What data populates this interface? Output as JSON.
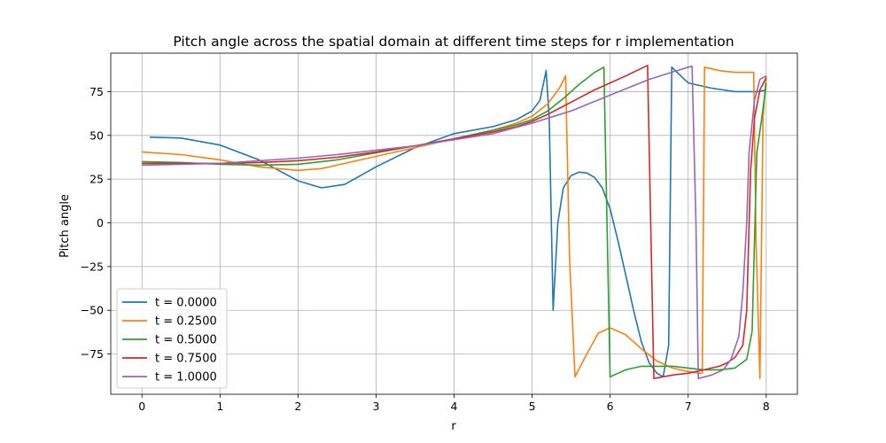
{
  "chart_data": {
    "type": "line",
    "title": "Pitch angle across the spatial domain at different time steps for r implementation",
    "xlabel": "r",
    "ylabel": "Pitch angle",
    "xlim": [
      -0.4,
      8.4
    ],
    "ylim": [
      -98,
      97
    ],
    "xticks": [
      0,
      1,
      2,
      3,
      4,
      5,
      6,
      7,
      8
    ],
    "xtick_labels": [
      "0",
      "1",
      "2",
      "3",
      "4",
      "5",
      "6",
      "7",
      "8"
    ],
    "yticks": [
      -75,
      -50,
      -25,
      0,
      25,
      50,
      75
    ],
    "ytick_labels": [
      "−75",
      "−50",
      "−25",
      "0",
      "25",
      "50",
      "75"
    ],
    "grid": true,
    "legend_position": "lower-left",
    "colors": [
      "#1f77b4",
      "#ff7f0e",
      "#2ca02c",
      "#d62728",
      "#9467bd"
    ],
    "series": [
      {
        "name": "t = 0.0000",
        "points": [
          [
            0.1,
            49
          ],
          [
            0.5,
            48.5
          ],
          [
            1.0,
            44.5
          ],
          [
            1.5,
            36
          ],
          [
            2.0,
            24
          ],
          [
            2.3,
            20
          ],
          [
            2.6,
            22
          ],
          [
            3.0,
            32
          ],
          [
            3.5,
            43
          ],
          [
            4.0,
            51
          ],
          [
            4.5,
            55
          ],
          [
            4.8,
            59
          ],
          [
            5.0,
            64
          ],
          [
            5.1,
            70
          ],
          [
            5.18,
            87
          ],
          [
            5.22,
            60
          ],
          [
            5.27,
            -50
          ],
          [
            5.33,
            0
          ],
          [
            5.4,
            20
          ],
          [
            5.5,
            27
          ],
          [
            5.6,
            29
          ],
          [
            5.7,
            28.5
          ],
          [
            5.8,
            26
          ],
          [
            5.9,
            20
          ],
          [
            6.0,
            8
          ],
          [
            6.1,
            -10
          ],
          [
            6.2,
            -30
          ],
          [
            6.3,
            -50
          ],
          [
            6.4,
            -68
          ],
          [
            6.5,
            -80
          ],
          [
            6.6,
            -86
          ],
          [
            6.68,
            -88
          ],
          [
            6.75,
            -70
          ],
          [
            6.79,
            89
          ],
          [
            7.0,
            80
          ],
          [
            7.3,
            77
          ],
          [
            7.6,
            75
          ],
          [
            7.9,
            75
          ],
          [
            8.0,
            76
          ]
        ]
      },
      {
        "name": "t = 0.2500",
        "points": [
          [
            0,
            40.5
          ],
          [
            0.5,
            39
          ],
          [
            1.0,
            36
          ],
          [
            1.5,
            32
          ],
          [
            2.0,
            30
          ],
          [
            2.3,
            31
          ],
          [
            2.6,
            34
          ],
          [
            3.0,
            38
          ],
          [
            3.5,
            43
          ],
          [
            4.0,
            48
          ],
          [
            4.5,
            53
          ],
          [
            4.8,
            57
          ],
          [
            5.0,
            61
          ],
          [
            5.2,
            68
          ],
          [
            5.35,
            77
          ],
          [
            5.43,
            84
          ],
          [
            5.48,
            -20
          ],
          [
            5.55,
            -88
          ],
          [
            5.7,
            -75
          ],
          [
            5.85,
            -63
          ],
          [
            6.0,
            -60
          ],
          [
            6.2,
            -64
          ],
          [
            6.4,
            -72
          ],
          [
            6.6,
            -79
          ],
          [
            6.8,
            -83
          ],
          [
            7.0,
            -85
          ],
          [
            7.15,
            -86
          ],
          [
            7.18,
            -86
          ],
          [
            7.21,
            89
          ],
          [
            7.4,
            87
          ],
          [
            7.6,
            86
          ],
          [
            7.84,
            86
          ],
          [
            7.87,
            -10
          ],
          [
            7.92,
            -89
          ],
          [
            7.96,
            60
          ],
          [
            8.0,
            84
          ]
        ]
      },
      {
        "name": "t = 0.5000",
        "points": [
          [
            0,
            35
          ],
          [
            0.5,
            34.5
          ],
          [
            1.0,
            33.5
          ],
          [
            1.5,
            33
          ],
          [
            2.0,
            33.5
          ],
          [
            2.5,
            36
          ],
          [
            3.0,
            40
          ],
          [
            3.5,
            44
          ],
          [
            4.0,
            48
          ],
          [
            4.5,
            53
          ],
          [
            4.8,
            56
          ],
          [
            5.0,
            59
          ],
          [
            5.2,
            64
          ],
          [
            5.4,
            71
          ],
          [
            5.6,
            79
          ],
          [
            5.8,
            86
          ],
          [
            5.92,
            89
          ],
          [
            5.96,
            0
          ],
          [
            6.0,
            -88
          ],
          [
            6.2,
            -84
          ],
          [
            6.4,
            -82
          ],
          [
            6.6,
            -82
          ],
          [
            6.8,
            -82
          ],
          [
            7.0,
            -83
          ],
          [
            7.2,
            -84
          ],
          [
            7.4,
            -84
          ],
          [
            7.6,
            -83
          ],
          [
            7.75,
            -78
          ],
          [
            7.82,
            -62
          ],
          [
            7.88,
            40
          ],
          [
            7.95,
            62
          ],
          [
            8.0,
            80
          ]
        ]
      },
      {
        "name": "t = 0.7500",
        "points": [
          [
            0,
            34
          ],
          [
            0.5,
            34
          ],
          [
            1.0,
            34
          ],
          [
            1.5,
            34.5
          ],
          [
            2.0,
            35.5
          ],
          [
            2.5,
            37.5
          ],
          [
            3.0,
            40.5
          ],
          [
            3.5,
            44
          ],
          [
            4.0,
            48
          ],
          [
            4.5,
            52
          ],
          [
            4.8,
            55
          ],
          [
            5.0,
            58
          ],
          [
            5.2,
            62
          ],
          [
            5.5,
            69
          ],
          [
            5.8,
            76
          ],
          [
            6.0,
            80
          ],
          [
            6.2,
            84
          ],
          [
            6.48,
            90
          ],
          [
            6.52,
            0
          ],
          [
            6.56,
            -89
          ],
          [
            6.8,
            -87
          ],
          [
            7.0,
            -86
          ],
          [
            7.2,
            -84
          ],
          [
            7.4,
            -82
          ],
          [
            7.5,
            -80
          ],
          [
            7.6,
            -77
          ],
          [
            7.7,
            -70
          ],
          [
            7.75,
            -50
          ],
          [
            7.8,
            30
          ],
          [
            7.85,
            60
          ],
          [
            7.92,
            76
          ],
          [
            8.0,
            83
          ]
        ]
      },
      {
        "name": "t = 1.0000",
        "points": [
          [
            0,
            33
          ],
          [
            0.5,
            33.5
          ],
          [
            1.0,
            34
          ],
          [
            1.5,
            35.5
          ],
          [
            2.0,
            37
          ],
          [
            2.5,
            39
          ],
          [
            3.0,
            41.5
          ],
          [
            3.5,
            44
          ],
          [
            4.0,
            47.5
          ],
          [
            4.5,
            51
          ],
          [
            5.0,
            57
          ],
          [
            5.5,
            64
          ],
          [
            6.0,
            73
          ],
          [
            6.5,
            82
          ],
          [
            7.0,
            89
          ],
          [
            7.05,
            89.5
          ],
          [
            7.1,
            0
          ],
          [
            7.13,
            -89
          ],
          [
            7.3,
            -87
          ],
          [
            7.45,
            -84
          ],
          [
            7.55,
            -78
          ],
          [
            7.65,
            -65
          ],
          [
            7.7,
            -40
          ],
          [
            7.75,
            0
          ],
          [
            7.78,
            40
          ],
          [
            7.85,
            70
          ],
          [
            7.92,
            82
          ],
          [
            8.0,
            84
          ]
        ]
      }
    ]
  }
}
